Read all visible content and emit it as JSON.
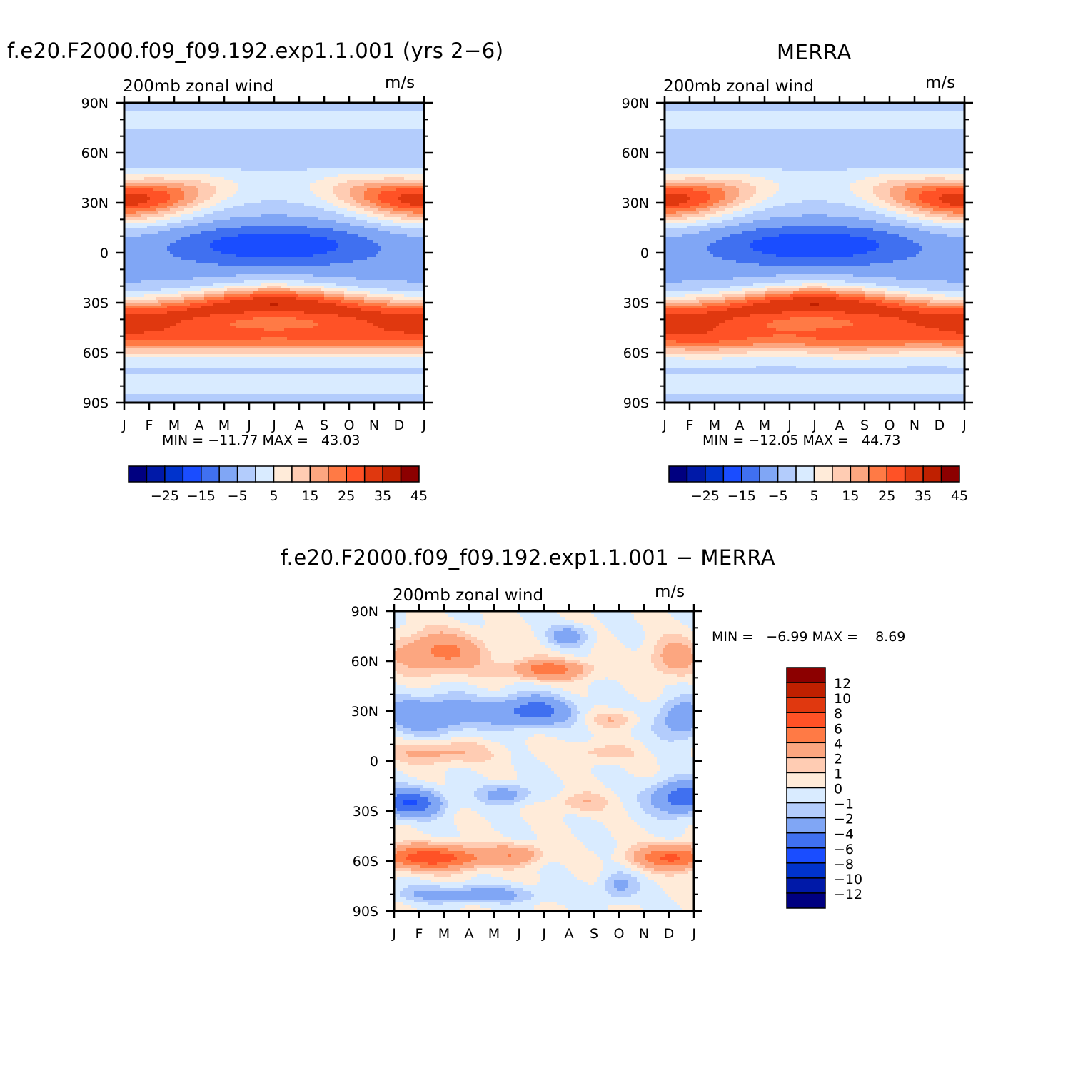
{
  "panels": {
    "model": {
      "title": "f.e20.F2000.f09_f09.192.exp1.1.001 (yrs 2−6)",
      "left_label": "200mb zonal wind",
      "right_label": "m/s",
      "min_max": "MIN = −11.77 MAX =   43.03"
    },
    "obs": {
      "title": "MERRA",
      "left_label": "200mb zonal wind",
      "right_label": "m/s",
      "min_max": "MIN = −12.05 MAX =   44.73"
    },
    "diff": {
      "title": "f.e20.F2000.f09_f09.192.exp1.1.001 − MERRA",
      "left_label": "200mb zonal wind",
      "right_label": "m/s",
      "min_max": "MIN =   −6.99 MAX =    8.69"
    }
  },
  "chart_data": [
    {
      "type": "heatmap",
      "panel": "model",
      "title": "f.e20.F2000.f09_f09.192.exp1.1.001 (yrs 2−6)",
      "subtitle": "200mb zonal wind",
      "units": "m/s",
      "x_ticks": [
        "J",
        "F",
        "M",
        "A",
        "M",
        "J",
        "J",
        "A",
        "S",
        "O",
        "N",
        "D",
        "J"
      ],
      "y_ticks": [
        "90N",
        "60N",
        "30N",
        "0",
        "30S",
        "60S",
        "90S"
      ],
      "latitudes": [
        90,
        60,
        30,
        0,
        -30,
        -60,
        -90
      ],
      "levels": [
        -30,
        -25,
        -20,
        -15,
        -10,
        -5,
        0,
        5,
        10,
        15,
        20,
        25,
        30,
        35,
        40,
        45,
        50
      ],
      "colorbar_labels": [
        "−25",
        "−15",
        "−5",
        "5",
        "15",
        "25",
        "35",
        "45"
      ],
      "colors": [
        "#000080",
        "#0019a8",
        "#0033cc",
        "#1a4dff",
        "#4070f0",
        "#80a6f5",
        "#b3ccfc",
        "#d9ebff",
        "#ffebd9",
        "#ffccb3",
        "#fca680",
        "#ff7a45",
        "#ff5226",
        "#e0380f",
        "#bf2000",
        "#8c0000"
      ],
      "min": -11.77,
      "max": 43.03
    },
    {
      "type": "heatmap",
      "panel": "obs",
      "title": "MERRA",
      "subtitle": "200mb zonal wind",
      "units": "m/s",
      "x_ticks": [
        "J",
        "F",
        "M",
        "A",
        "M",
        "J",
        "J",
        "A",
        "S",
        "O",
        "N",
        "D",
        "J"
      ],
      "y_ticks": [
        "90N",
        "60N",
        "30N",
        "0",
        "30S",
        "60S",
        "90S"
      ],
      "latitudes": [
        90,
        60,
        30,
        0,
        -30,
        -60,
        -90
      ],
      "levels": [
        -30,
        -25,
        -20,
        -15,
        -10,
        -5,
        0,
        5,
        10,
        15,
        20,
        25,
        30,
        35,
        40,
        45,
        50
      ],
      "colorbar_labels": [
        "−25",
        "−15",
        "−5",
        "5",
        "15",
        "25",
        "35",
        "45"
      ],
      "colors": [
        "#000080",
        "#0019a8",
        "#0033cc",
        "#1a4dff",
        "#4070f0",
        "#80a6f5",
        "#b3ccfc",
        "#d9ebff",
        "#ffebd9",
        "#ffccb3",
        "#fca680",
        "#ff7a45",
        "#ff5226",
        "#e0380f",
        "#bf2000",
        "#8c0000"
      ],
      "min": -12.05,
      "max": 44.73
    },
    {
      "type": "heatmap",
      "panel": "diff",
      "title": "f.e20.F2000.f09_f09.192.exp1.1.001 − MERRA",
      "subtitle": "200mb zonal wind",
      "units": "m/s",
      "x_ticks": [
        "J",
        "F",
        "M",
        "A",
        "M",
        "J",
        "J",
        "A",
        "S",
        "O",
        "N",
        "D",
        "J"
      ],
      "y_ticks": [
        "90N",
        "60N",
        "30N",
        "0",
        "30S",
        "60S",
        "90S"
      ],
      "latitudes": [
        90,
        60,
        30,
        0,
        -30,
        -60,
        -90
      ],
      "levels": [
        -14,
        -12,
        -10,
        -8,
        -6,
        -4,
        -2,
        -1,
        0,
        1,
        2,
        4,
        6,
        8,
        10,
        12,
        14
      ],
      "colorbar_labels": [
        "12",
        "10",
        "8",
        "6",
        "4",
        "2",
        "1",
        "0",
        "−1",
        "−2",
        "−4",
        "−6",
        "−8",
        "−10",
        "−12"
      ],
      "colors": [
        "#000080",
        "#0019a8",
        "#0033cc",
        "#1a4dff",
        "#4070f0",
        "#80a6f5",
        "#b3ccfc",
        "#d9ebff",
        "#ffebd9",
        "#ffccb3",
        "#fca680",
        "#ff7a45",
        "#ff5226",
        "#e0380f",
        "#bf2000",
        "#8c0000"
      ],
      "min": -6.99,
      "max": 8.69
    }
  ]
}
